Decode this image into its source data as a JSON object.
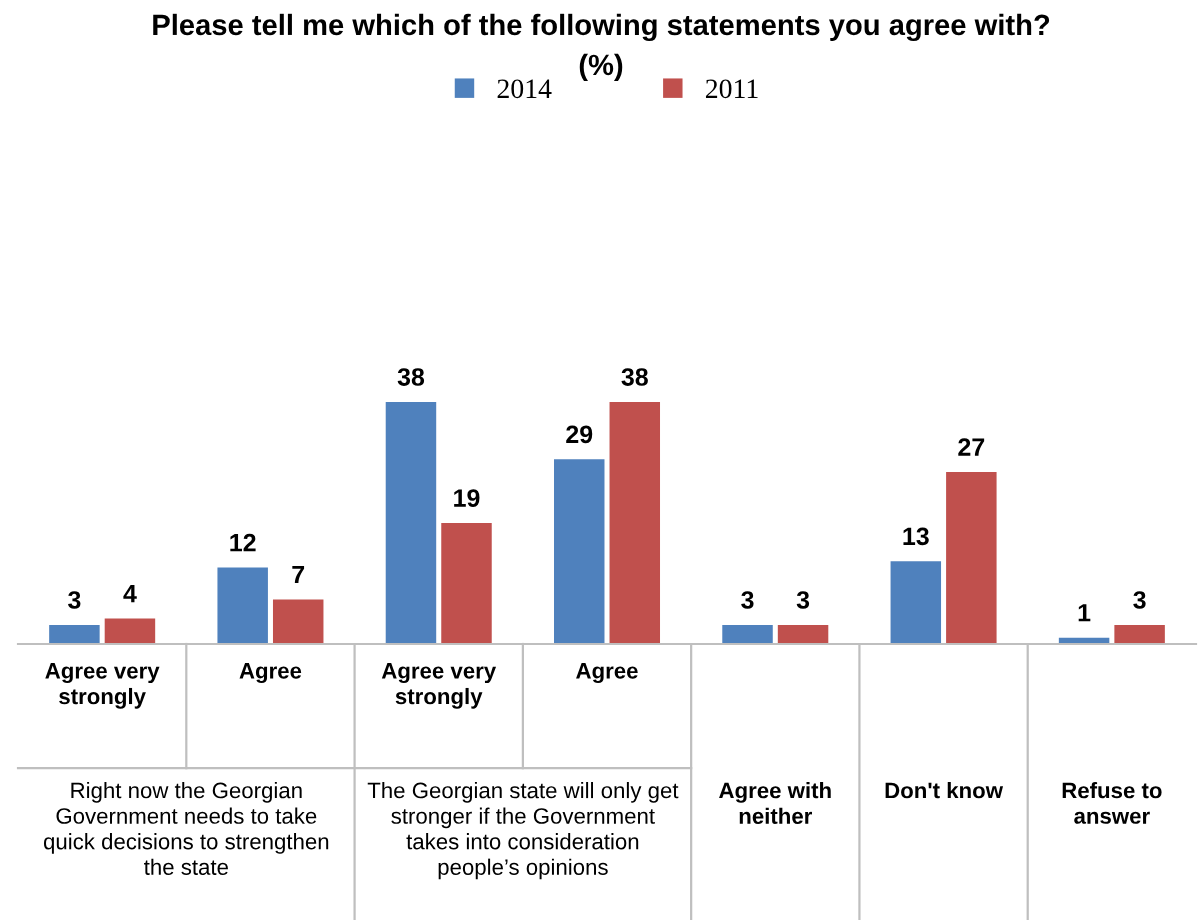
{
  "chart_data": {
    "type": "bar",
    "title": "Please tell me which of the following statements you agree with?\n(%)",
    "categories": [
      "Agree very strongly",
      "Agree",
      "Agree very strongly",
      "Agree",
      "Agree with neither",
      "Don't know",
      "Refuse to answer"
    ],
    "series": [
      {
        "name": "2014",
        "color": "#4f81bd",
        "values": [
          3,
          12,
          38,
          29,
          3,
          13,
          1
        ]
      },
      {
        "name": "2011",
        "color": "#c0504d",
        "values": [
          4,
          7,
          19,
          38,
          3,
          27,
          3
        ]
      }
    ],
    "annotations": [
      "Right now the Georgian Government needs to take quick decisions to strengthen the state",
      "The Georgian state will only get stronger if the Government takes into consideration people’s opinions"
    ],
    "data_labels": true,
    "legend": "top"
  }
}
